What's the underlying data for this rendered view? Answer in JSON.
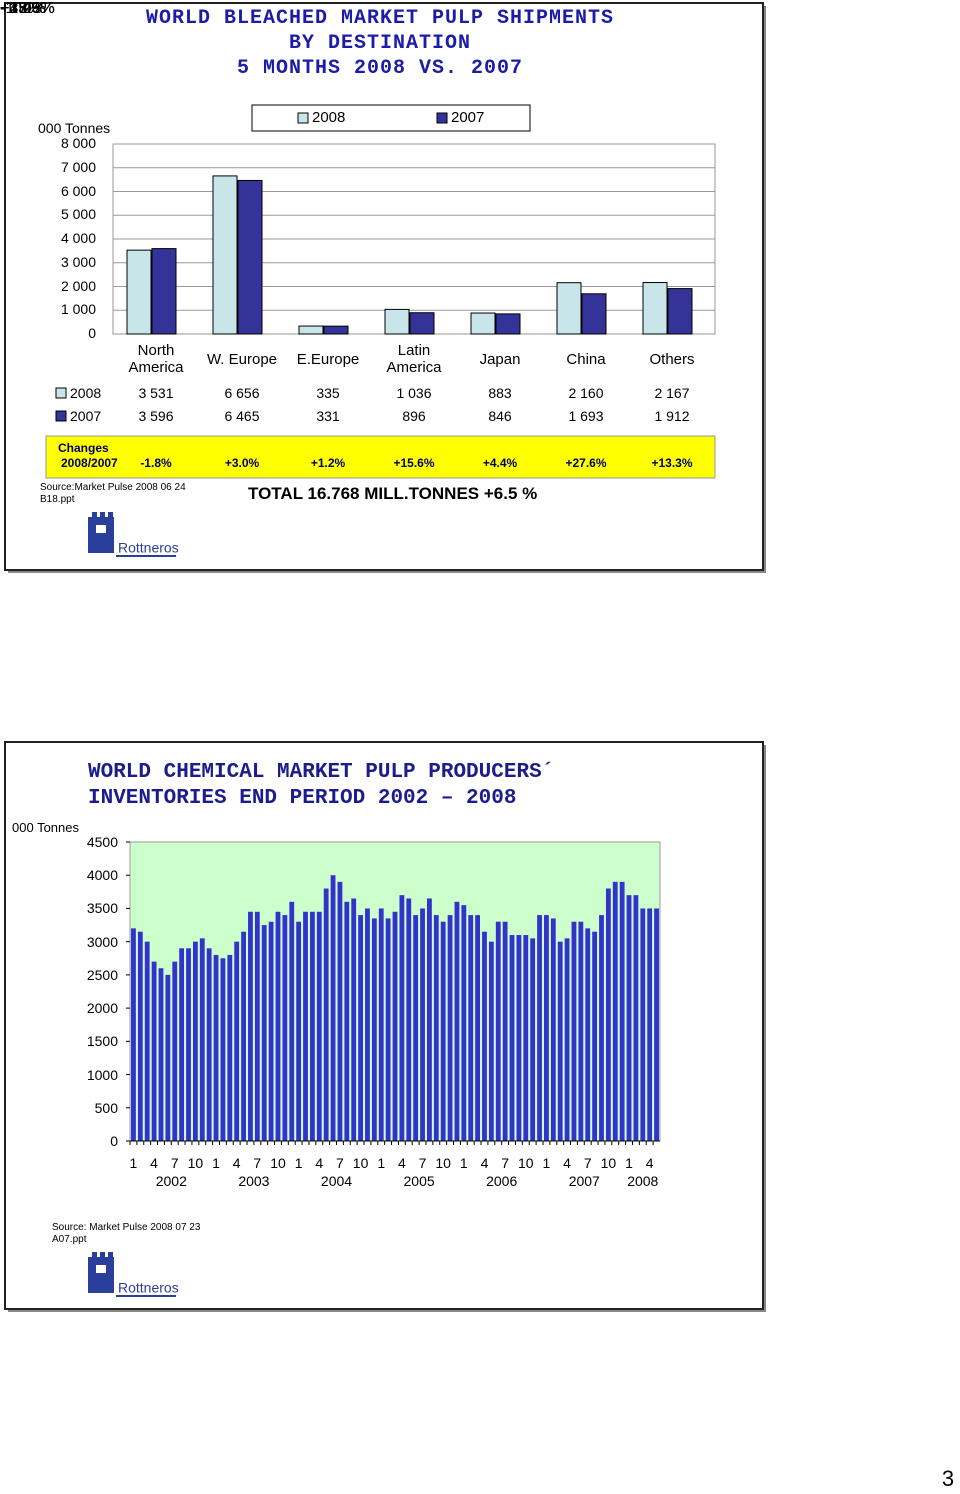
{
  "chart_data": [
    {
      "type": "bar",
      "title": [
        "WORLD BLEACHED MARKET PULP SHIPMENTS",
        "BY DESTINATION",
        "5 MONTHS 2008 VS. 2007"
      ],
      "y_axis_label": "000 Tonnes",
      "categories": [
        "North America",
        "W. Europe",
        "E.Europe",
        "Latin America",
        "Japan",
        "China",
        "Others"
      ],
      "series": [
        {
          "name": "2008",
          "color": "#c8e6ea",
          "values": [
            3531,
            6656,
            335,
            1036,
            883,
            2160,
            2167
          ],
          "value_labels": [
            "3 531",
            "6 656",
            "335",
            "1 036",
            "883",
            "2 160",
            "2 167"
          ]
        },
        {
          "name": "2007",
          "color": "#333399",
          "values": [
            3596,
            6465,
            331,
            896,
            846,
            1693,
            1912
          ],
          "value_labels": [
            "3 596",
            "6 465",
            "331",
            "896",
            "846",
            "1 693",
            "1 912"
          ]
        }
      ],
      "ylim": [
        0,
        8000
      ],
      "yticks": [
        0,
        {
          "value": 1000,
          "label": "1 000"
        },
        {
          "value": 2000,
          "label": "2 000"
        },
        {
          "value": 3000,
          "label": "3 000"
        },
        {
          "value": 4000,
          "label": "4 000"
        },
        {
          "value": 5000,
          "label": "5 000"
        },
        {
          "value": 6000,
          "label": "6 000"
        },
        {
          "value": 7000,
          "label": "7 000"
        },
        {
          "value": 8000,
          "label": "8 000"
        }
      ],
      "grid": true,
      "legend": "top",
      "changes": {
        "label": [
          "Changes",
          "2008/2007"
        ],
        "values": [
          "-1.8%",
          "+3.0%",
          "+1.2%",
          "+15.6%",
          "+4.4%",
          "+27.6%",
          "+13.3%"
        ]
      },
      "source": "Source:Market Pulse 2008 06 24 B18.ppt",
      "total": "TOTAL 16.768 MILL.TONNES +6.5 %"
    },
    {
      "type": "bar",
      "title": [
        "WORLD CHEMICAL MARKET PULP PRODUCERS´",
        "INVENTORIES END PERIOD 2002 – 2008"
      ],
      "y_axis_label": "000 Tonnes",
      "categories": [
        "1",
        null,
        null,
        "4",
        null,
        null,
        "7",
        null,
        null,
        "10",
        null,
        null,
        "1",
        null,
        null,
        "4",
        null,
        null,
        "7",
        null,
        null,
        "10",
        null,
        null,
        "1",
        null,
        null,
        "4",
        null,
        null,
        "7",
        null,
        null,
        "10",
        null,
        null,
        "1",
        null,
        null,
        "4",
        null,
        null,
        "7",
        null,
        null,
        "10",
        null,
        null,
        "1",
        null,
        null,
        "4",
        null,
        null,
        "7",
        null,
        null,
        "10",
        null,
        null,
        "1",
        null,
        null,
        "4",
        null,
        null,
        "7",
        null,
        null,
        "10",
        null,
        null,
        "1",
        null,
        null,
        "4",
        null
      ],
      "years": [
        "2002",
        "2003",
        "2004",
        "2005",
        "2006",
        "2007",
        "2008"
      ],
      "color": "#3333cc",
      "values": [
        3200,
        3150,
        3000,
        2700,
        2600,
        2500,
        2700,
        2900,
        2900,
        3000,
        3050,
        2900,
        2800,
        2750,
        2800,
        3000,
        3150,
        3450,
        3450,
        3250,
        3300,
        3450,
        3400,
        3600,
        3300,
        3450,
        3450,
        3450,
        3800,
        4000,
        3900,
        3600,
        3650,
        3400,
        3500,
        3350,
        3500,
        3350,
        3450,
        3700,
        3650,
        3400,
        3500,
        3650,
        3400,
        3300,
        3400,
        3600,
        3550,
        3400,
        3400,
        3150,
        3000,
        3300,
        3300,
        3100,
        3100,
        3100,
        3050,
        3400,
        3400,
        3350,
        3000,
        3050,
        3300,
        3300,
        3200,
        3150,
        3400,
        3800,
        3900,
        3900,
        3700,
        3700,
        3500,
        3500,
        3500
      ],
      "ylim": [
        0,
        4500
      ],
      "yticks": [
        0,
        500,
        1000,
        1500,
        2000,
        2500,
        3000,
        3500,
        4000,
        4500
      ],
      "grid": false,
      "source": "Source: Market Pulse 2008 07 23 A07.ppt"
    }
  ],
  "logo": "Rottneros",
  "page_number": "3"
}
